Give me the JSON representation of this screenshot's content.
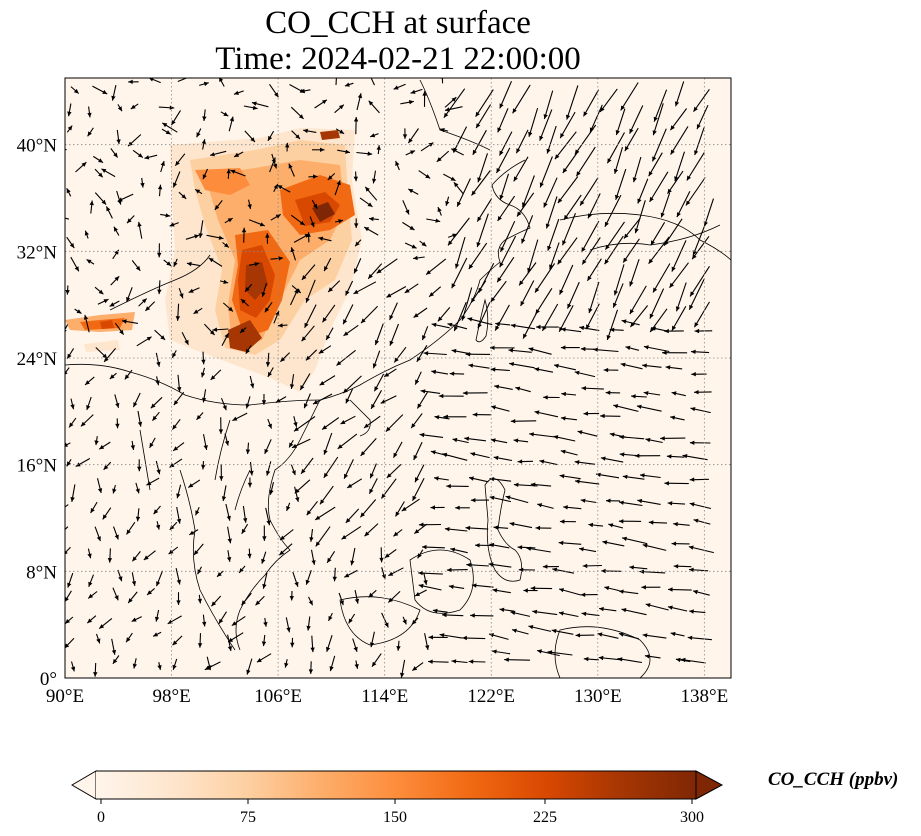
{
  "title": {
    "line1": "CO_CCH at surface",
    "line2": "Time: 2024-02-21 22:00:00"
  },
  "map": {
    "projection": "PlateCarree",
    "lon_range": [
      90,
      140
    ],
    "lat_range": [
      0,
      45
    ],
    "gridlines": "dotted",
    "lon_ticks": [
      {
        "value": 90,
        "label": "90°E"
      },
      {
        "value": 98,
        "label": "98°E"
      },
      {
        "value": 106,
        "label": "106°E"
      },
      {
        "value": 114,
        "label": "114°E"
      },
      {
        "value": 122,
        "label": "122°E"
      },
      {
        "value": 130,
        "label": "130°E"
      },
      {
        "value": 138,
        "label": "138°E"
      }
    ],
    "lat_ticks": [
      {
        "value": 0,
        "label": "0°"
      },
      {
        "value": 8,
        "label": "8°N"
      },
      {
        "value": 16,
        "label": "16°N"
      },
      {
        "value": 24,
        "label": "24°N"
      },
      {
        "value": 32,
        "label": "32°N"
      },
      {
        "value": 40,
        "label": "40°N"
      }
    ],
    "background_color": "#fff5eb",
    "wind_vectors": "black quiver arrows"
  },
  "colorbar": {
    "title": "CO_CCH (ppbv)",
    "min": 0,
    "max": 300,
    "extend": "both",
    "colormap": "OrRd",
    "ticks": [
      {
        "value": 0,
        "label": "0"
      },
      {
        "value": 75,
        "label": "75"
      },
      {
        "value": 150,
        "label": "150"
      },
      {
        "value": 225,
        "label": "225"
      },
      {
        "value": 300,
        "label": "300"
      }
    ],
    "colors": [
      "#fff5eb",
      "#fee6ce",
      "#fdd0a2",
      "#fdae6b",
      "#fd8d3c",
      "#f16913",
      "#d94801",
      "#a63603",
      "#7f2704"
    ]
  }
}
